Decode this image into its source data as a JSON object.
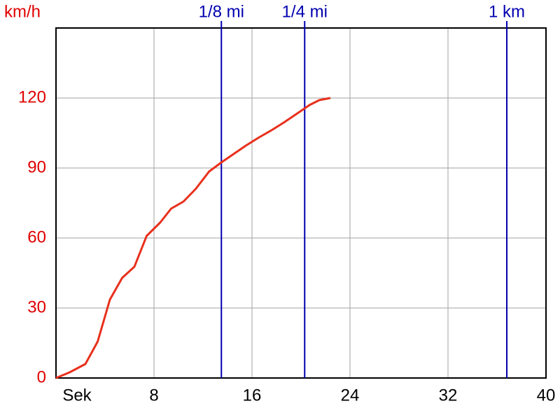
{
  "chart_data": {
    "type": "line",
    "ylabel": "km/h",
    "x": [
      0,
      1.1,
      2.4,
      3.4,
      4.4,
      5.4,
      6.4,
      7.4,
      8.5,
      9.4,
      10.4,
      11.4,
      12.5,
      13.5,
      14.5,
      15.5,
      16.6,
      17.6,
      18.6,
      19.7,
      20.7,
      21.5,
      22.4
    ],
    "series": [
      {
        "color": "#e8301c",
        "values": [
          0,
          2.4,
          6,
          15.6,
          33.6,
          42.9,
          47.7,
          60.9,
          66.6,
          72.6,
          75.6,
          81,
          88.5,
          92.4,
          96,
          99.6,
          103.2,
          106.2,
          109.5,
          113.4,
          117,
          119.1,
          120
        ]
      }
    ],
    "xlim": [
      0,
      40
    ],
    "xticks": [
      {
        "value": 0,
        "label": "Sek"
      },
      8,
      16,
      24,
      32,
      40
    ],
    "ylim": [
      0,
      150
    ],
    "yticks": [
      0,
      30,
      60,
      90,
      120
    ],
    "grid": true,
    "markers": [
      {
        "label": "1/8 mi",
        "x": 13.5
      },
      {
        "label": "1/4 mi",
        "x": 20.3
      },
      {
        "label": "1 km",
        "x": 36.8
      }
    ],
    "marker_color": "#0000b0",
    "ytick_color": "#e00000"
  }
}
